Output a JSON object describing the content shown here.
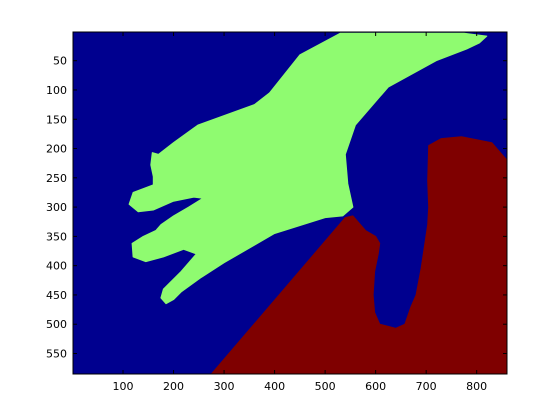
{
  "chart_data": {
    "type": "heatmap",
    "title": "",
    "xlabel": "",
    "ylabel": "",
    "xlim": [
      1,
      860
    ],
    "ylim": [
      585,
      1
    ],
    "y_reversed": true,
    "xticks": [
      100,
      200,
      300,
      400,
      500,
      600,
      700,
      800
    ],
    "yticks": [
      50,
      100,
      150,
      200,
      250,
      300,
      350,
      400,
      450,
      500,
      550
    ],
    "colormap": "jet",
    "colors": {
      "background": "#00008f",
      "hand": "#8ffb70",
      "arm": "#7f0000",
      "axes": "#000000"
    },
    "regions": [
      {
        "class": "hand",
        "color": "#8ffb70",
        "outline": [
          [
            535,
            315
          ],
          [
            500,
            318
          ],
          [
            400,
            345
          ],
          [
            360,
            365
          ],
          [
            300,
            395
          ],
          [
            255,
            420
          ],
          [
            215,
            445
          ],
          [
            200,
            458
          ],
          [
            185,
            465
          ],
          [
            175,
            455
          ],
          [
            180,
            440
          ],
          [
            215,
            410
          ],
          [
            245,
            380
          ],
          [
            220,
            372
          ],
          [
            180,
            385
          ],
          [
            145,
            393
          ],
          [
            120,
            385
          ],
          [
            118,
            362
          ],
          [
            140,
            350
          ],
          [
            165,
            340
          ],
          [
            175,
            330
          ],
          [
            200,
            315
          ],
          [
            230,
            300
          ],
          [
            258,
            285
          ],
          [
            240,
            283
          ],
          [
            200,
            290
          ],
          [
            160,
            305
          ],
          [
            130,
            308
          ],
          [
            112,
            295
          ],
          [
            120,
            275
          ],
          [
            160,
            262
          ],
          [
            160,
            248
          ],
          [
            155,
            228
          ],
          [
            158,
            207
          ],
          [
            170,
            210
          ],
          [
            200,
            190
          ],
          [
            248,
            160
          ],
          [
            360,
            125
          ],
          [
            390,
            105
          ],
          [
            450,
            40
          ],
          [
            530,
            3
          ],
          [
            775,
            3
          ],
          [
            820,
            8
          ],
          [
            805,
            20
          ],
          [
            780,
            30
          ],
          [
            720,
            50
          ],
          [
            625,
            95
          ],
          [
            560,
            160
          ],
          [
            540,
            210
          ],
          [
            545,
            260
          ],
          [
            555,
            300
          ]
        ]
      },
      {
        "class": "arm",
        "color": "#7f0000",
        "outline": [
          [
            275,
            585
          ],
          [
            540,
            318
          ],
          [
            555,
            315
          ],
          [
            580,
            340
          ],
          [
            600,
            350
          ],
          [
            608,
            362
          ],
          [
            605,
            380
          ],
          [
            598,
            410
          ],
          [
            595,
            450
          ],
          [
            598,
            480
          ],
          [
            608,
            500
          ],
          [
            640,
            507
          ],
          [
            658,
            500
          ],
          [
            670,
            470
          ],
          [
            680,
            450
          ],
          [
            690,
            405
          ],
          [
            703,
            330
          ],
          [
            705,
            300
          ],
          [
            703,
            255
          ],
          [
            705,
            195
          ],
          [
            730,
            183
          ],
          [
            770,
            180
          ],
          [
            830,
            190
          ],
          [
            860,
            220
          ],
          [
            860,
            585
          ]
        ]
      }
    ]
  }
}
